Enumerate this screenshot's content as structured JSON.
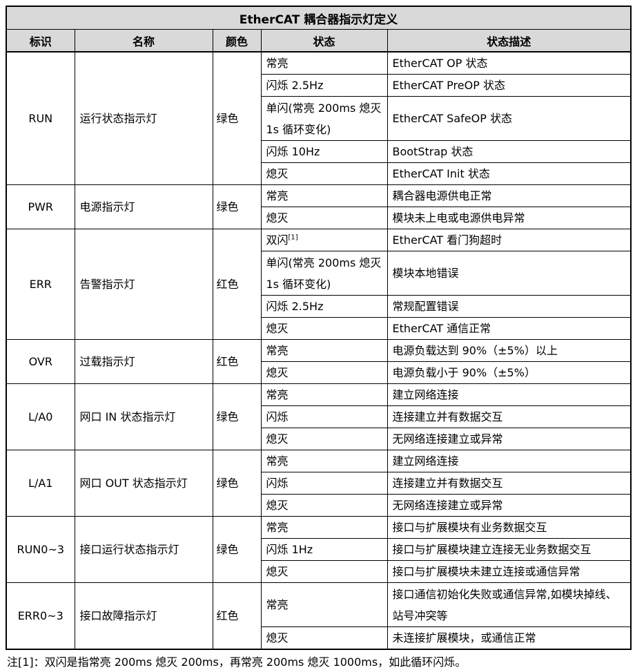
{
  "title": "EtherCAT 耦合器指示灯定义",
  "columns": [
    "标识",
    "名称",
    "颜色",
    "状态",
    "状态描述"
  ],
  "groups": [
    {
      "id": "RUN",
      "name": "运行状态指示灯",
      "color": "绿色",
      "states": [
        {
          "state": "常亮",
          "desc": "EtherCAT OP 状态",
          "tall": false
        },
        {
          "state": "闪烁 2.5Hz",
          "desc": "EtherCAT PreOP 状态",
          "tall": false
        },
        {
          "state": "单闪(常亮 200ms 熄灭 1s 循环变化)",
          "desc": "EtherCAT SafeOP 状态",
          "tall": true
        },
        {
          "state": "闪烁 10Hz",
          "desc": "BootStrap 状态",
          "tall": false
        },
        {
          "state": "熄灭",
          "desc": "EtherCAT Init 状态",
          "tall": false
        }
      ]
    },
    {
      "id": "PWR",
      "name": "电源指示灯",
      "color": "绿色",
      "states": [
        {
          "state": "常亮",
          "desc": "耦合器电源供电正常",
          "tall": false
        },
        {
          "state": "熄灭",
          "desc": "模块未上电或电源供电异常",
          "tall": false
        }
      ]
    },
    {
      "id": "ERR",
      "name": "告警指示灯",
      "color": "红色",
      "states": [
        {
          "state": "双闪",
          "sup": "[1]",
          "desc": "EtherCAT 看门狗超时",
          "tall": false
        },
        {
          "state": "单闪(常亮 200ms 熄灭 1s 循环变化)",
          "desc": "模块本地错误",
          "tall": true
        },
        {
          "state": "闪烁 2.5Hz",
          "desc": "常规配置错误",
          "tall": false
        },
        {
          "state": "熄灭",
          "desc": "EtherCAT 通信正常",
          "tall": false
        }
      ]
    },
    {
      "id": "OVR",
      "name": "过载指示灯",
      "color": "红色",
      "states": [
        {
          "state": "常亮",
          "desc": "电源负载达到 90%（±5%）以上",
          "tall": false
        },
        {
          "state": "熄灭",
          "desc": "电源负载小于 90%（±5%）",
          "tall": false
        }
      ]
    },
    {
      "id": "L/A0",
      "name": "网口 IN 状态指示灯",
      "color": "绿色",
      "states": [
        {
          "state": "常亮",
          "desc": "建立网络连接",
          "tall": false
        },
        {
          "state": "闪烁",
          "desc": "连接建立并有数据交互",
          "tall": false
        },
        {
          "state": "熄灭",
          "desc": "无网络连接建立或异常",
          "tall": false
        }
      ]
    },
    {
      "id": "L/A1",
      "name": "网口 OUT 状态指示灯",
      "color": "绿色",
      "states": [
        {
          "state": "常亮",
          "desc": "建立网络连接",
          "tall": false
        },
        {
          "state": "闪烁",
          "desc": "连接建立并有数据交互",
          "tall": false
        },
        {
          "state": "熄灭",
          "desc": "无网络连接建立或异常",
          "tall": false
        }
      ]
    },
    {
      "id": "RUN0~3",
      "name": "接口运行状态指示灯",
      "color": "绿色",
      "states": [
        {
          "state": "常亮",
          "desc": "接口与扩展模块有业务数据交互",
          "tall": false
        },
        {
          "state": "闪烁 1Hz",
          "desc": "接口与扩展模块建立连接无业务数据交互",
          "tall": false
        },
        {
          "state": "熄灭",
          "desc": "接口与扩展模块未建立连接或通信异常",
          "tall": false
        }
      ]
    },
    {
      "id": "ERR0~3",
      "name": "接口故障指示灯",
      "color": "红色",
      "states": [
        {
          "state": "常亮",
          "desc": "接口通信初始化失败或通信异常,如模块掉线、站号冲突等",
          "tall": true
        },
        {
          "state": "熄灭",
          "desc": "未连接扩展模块，或通信正常",
          "tall": false
        }
      ]
    }
  ],
  "footnote": "注[1]：双闪是指常亮 200ms 熄灭 200ms，再常亮 200ms 熄灭 1000ms，如此循环闪烁。",
  "colors": {
    "header_bg": "#d9d9d9",
    "border": "#000000",
    "text": "#000000"
  }
}
